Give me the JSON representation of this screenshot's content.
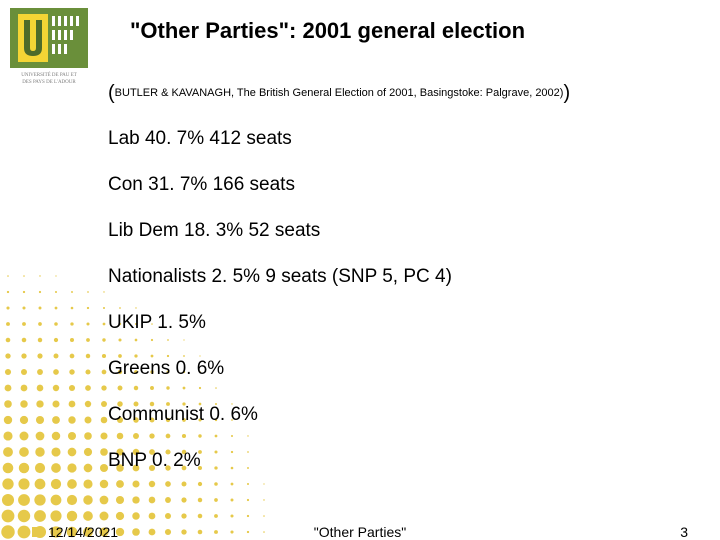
{
  "title": "\"Other Parties\": 2001 general election",
  "citation": {
    "open": "(",
    "text": "BUTLER & KAVANAGH, The British General Election of 2001, Basingstoke: Palgrave, 2002)",
    "close": ")"
  },
  "results": [
    "Lab 40. 7% 412 seats",
    "Con 31. 7% 166 seats",
    "Lib Dem 18. 3% 52 seats",
    "Nationalists 2. 5% 9 seats (SNP 5, PC 4)",
    "UKIP 1. 5%",
    "Greens 0. 6%",
    "Communist 0. 6%",
    "BNP 0. 2%"
  ],
  "footer": {
    "date": "12/14/2021",
    "center": "\"Other Parties\"",
    "page": "3"
  },
  "colors": {
    "dot": "#e6c94a",
    "logo_green": "#6a8f3a",
    "logo_green_dark": "#4d6b2a",
    "logo_yellow": "#f4d535",
    "logo_white": "#ffffff",
    "text_grey": "#7d7d7d"
  },
  "halftone": {
    "color": "#e6c94a",
    "rows": 22,
    "cols": 22,
    "cell": 16,
    "max_r": 7
  }
}
